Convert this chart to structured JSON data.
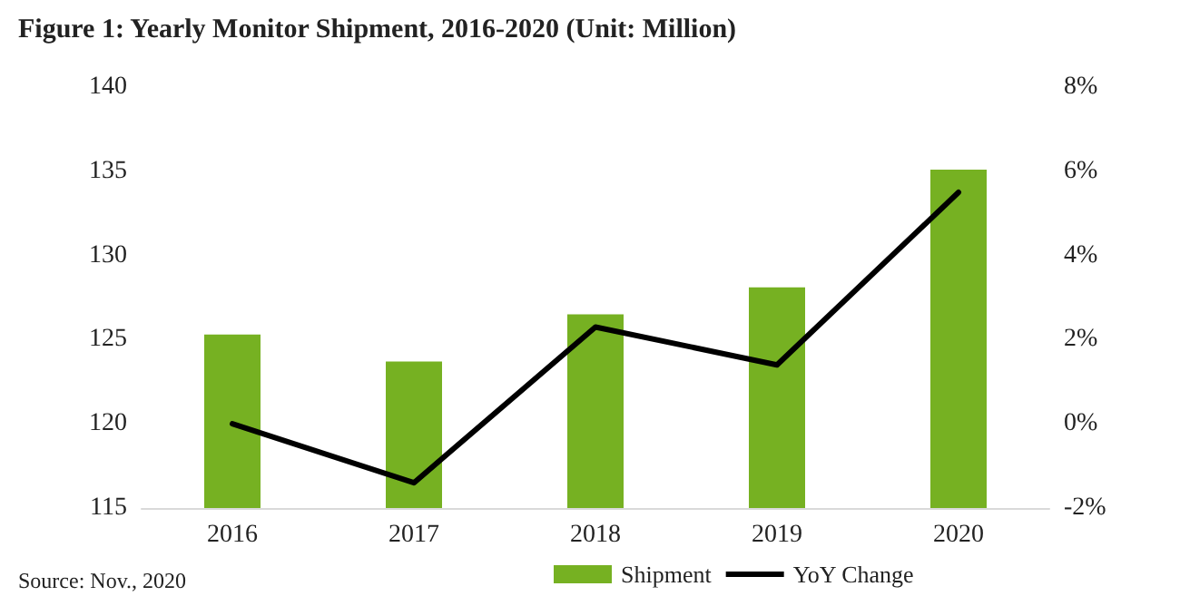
{
  "chart_data": {
    "type": "bar",
    "title": "Figure 1: Yearly Monitor Shipment, 2016-2020 (Unit: Million)",
    "categories": [
      "2016",
      "2017",
      "2018",
      "2019",
      "2020"
    ],
    "series": [
      {
        "name": "Shipment",
        "color": "#76b122",
        "values": [
          125.3,
          123.7,
          126.5,
          128.1,
          135.1
        ]
      },
      {
        "name": "YoY Change",
        "type": "line",
        "axis": "y2",
        "color": "#000000",
        "values": [
          0,
          -1.4,
          2.3,
          1.4,
          5.5
        ]
      }
    ],
    "ylim": [
      115,
      140
    ],
    "yticks": [
      115,
      120,
      125,
      130,
      135,
      140
    ],
    "y2lim": [
      -2,
      8
    ],
    "y2ticks": [
      {
        "value": -2,
        "label": "-2%"
      },
      {
        "value": 0,
        "label": "0%"
      },
      {
        "value": 2,
        "label": "2%"
      },
      {
        "value": 4,
        "label": "4%"
      },
      {
        "value": 6,
        "label": "6%"
      },
      {
        "value": 8,
        "label": "8%"
      }
    ],
    "annotations": [
      "Source: Nov., 2020"
    ],
    "legend": "bottom",
    "grid": false,
    "marker": "none"
  }
}
